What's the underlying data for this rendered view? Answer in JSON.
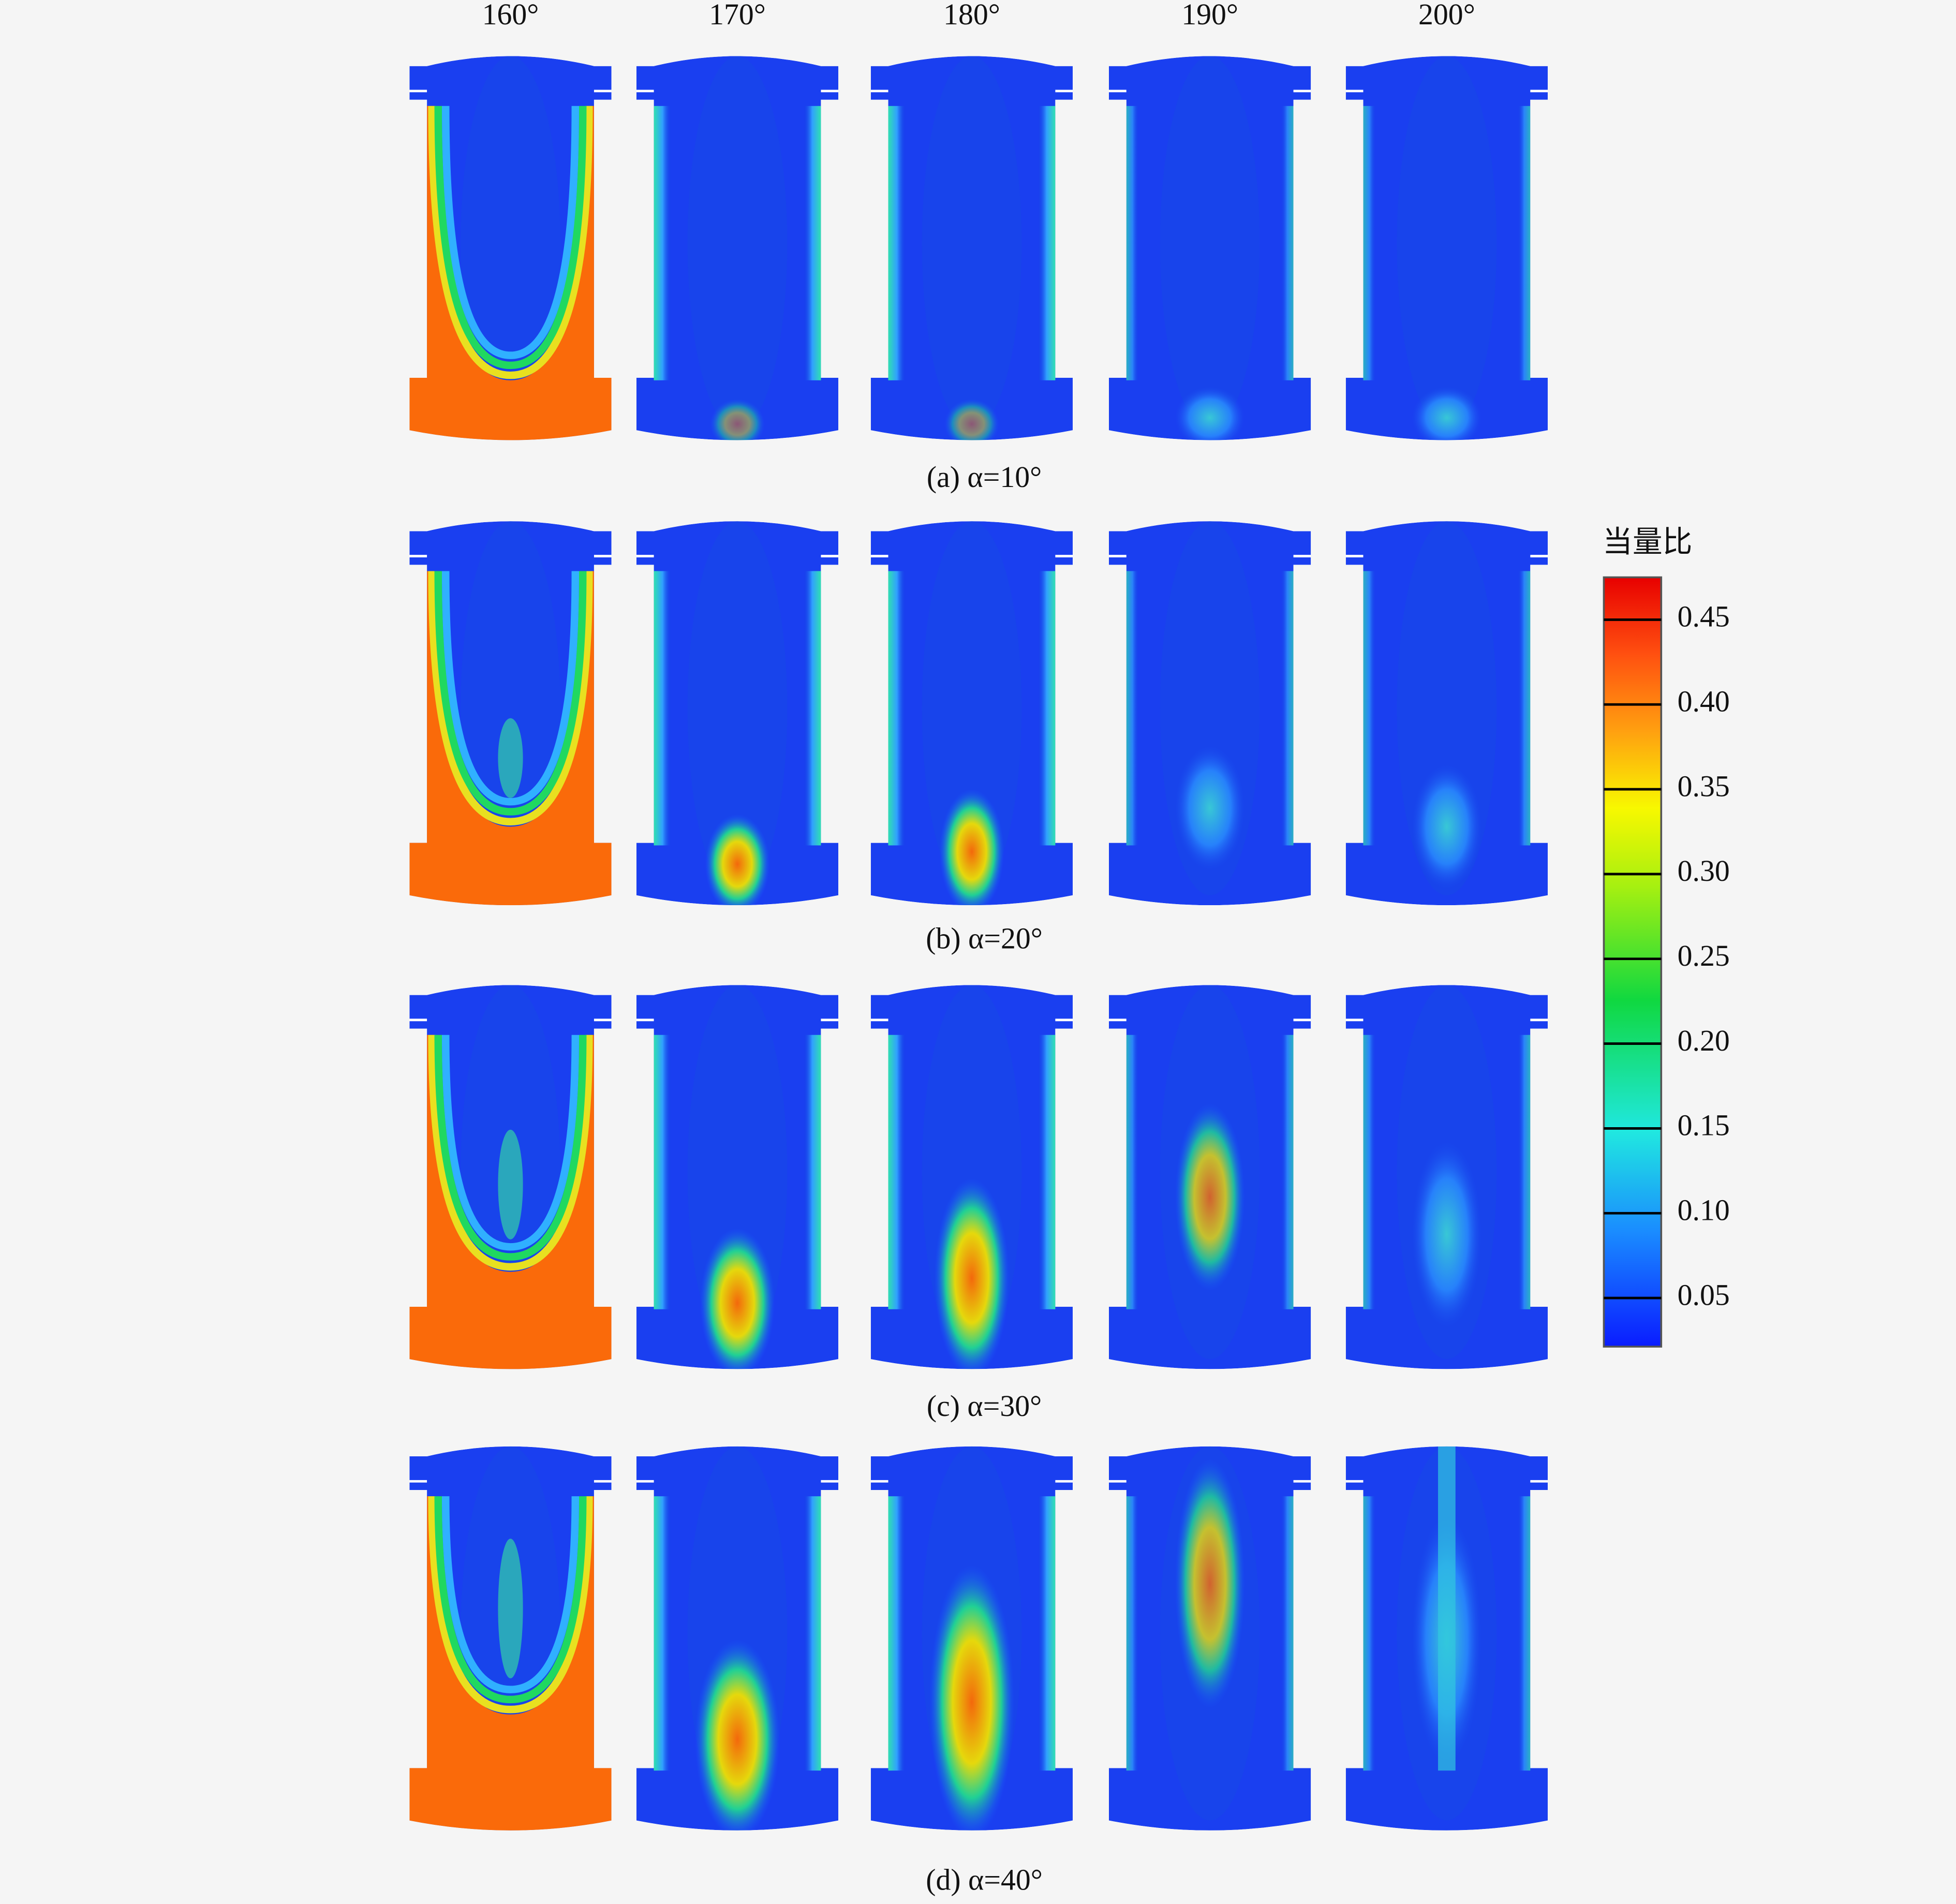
{
  "figure": {
    "column_labels": [
      "160°",
      "170°",
      "180°",
      "190°",
      "200°"
    ],
    "rows": [
      {
        "caption": "(a) α=10°"
      },
      {
        "caption": "(b) α=20°"
      },
      {
        "caption": "(c) α=30°"
      },
      {
        "caption": "(d) α=40°"
      }
    ],
    "colorbar": {
      "title": "当量比",
      "ticks": [
        "0.45",
        "0.40",
        "0.35",
        "0.30",
        "0.25",
        "0.20",
        "0.15",
        "0.10",
        "0.05"
      ]
    }
  }
}
